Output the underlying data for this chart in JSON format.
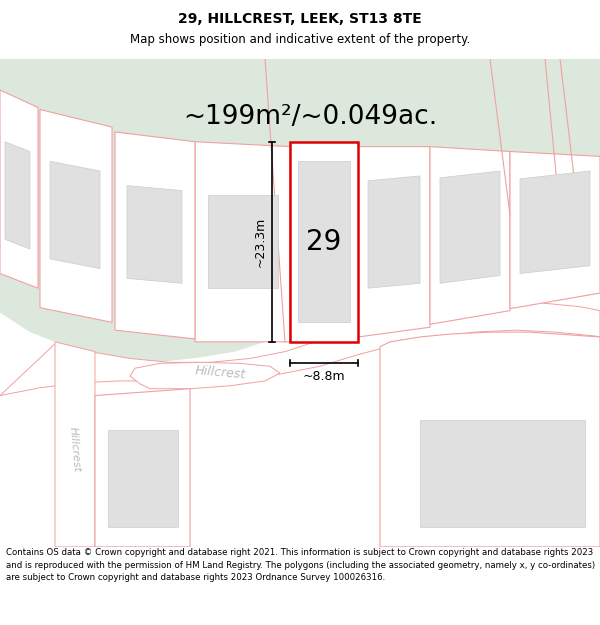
{
  "title": "29, HILLCREST, LEEK, ST13 8TE",
  "subtitle": "Map shows position and indicative extent of the property.",
  "area_text": "~199m²/~0.049ac.",
  "number_label": "29",
  "dim_height": "~23.3m",
  "dim_width": "~8.8m",
  "footer": "Contains OS data © Crown copyright and database right 2021. This information is subject to Crown copyright and database rights 2023 and is reproduced with the permission of HM Land Registry. The polygons (including the associated geometry, namely x, y co-ordinates) are subject to Crown copyright and database rights 2023 Ordnance Survey 100026316.",
  "bg_map_color": "#ffffff",
  "green_area_color": "#dde8dd",
  "plot_outline_color": "#e00000",
  "prop_line_color": "#f0a0a0",
  "building_fill": "#e0e0e0",
  "building_edge": "#cccccc",
  "title_fontsize": 10,
  "subtitle_fontsize": 8.5,
  "area_fontsize": 19,
  "number_fontsize": 20,
  "dim_fontsize": 9,
  "footer_fontsize": 6.2,
  "road_text_color": "#bbbbbb",
  "road_text_size": 9
}
